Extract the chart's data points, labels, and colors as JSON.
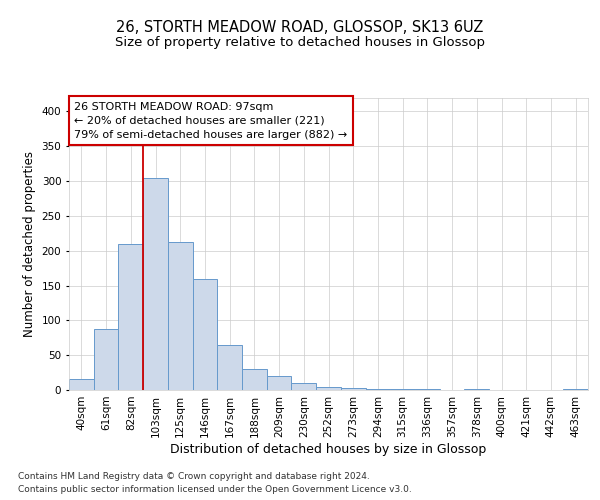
{
  "title1": "26, STORTH MEADOW ROAD, GLOSSOP, SK13 6UZ",
  "title2": "Size of property relative to detached houses in Glossop",
  "xlabel": "Distribution of detached houses by size in Glossop",
  "ylabel": "Number of detached properties",
  "categories": [
    "40sqm",
    "61sqm",
    "82sqm",
    "103sqm",
    "125sqm",
    "146sqm",
    "167sqm",
    "188sqm",
    "209sqm",
    "230sqm",
    "252sqm",
    "273sqm",
    "294sqm",
    "315sqm",
    "336sqm",
    "357sqm",
    "378sqm",
    "400sqm",
    "421sqm",
    "442sqm",
    "463sqm"
  ],
  "values": [
    16,
    88,
    210,
    305,
    212,
    160,
    64,
    30,
    20,
    10,
    5,
    3,
    2,
    1,
    1,
    0,
    1,
    0,
    0,
    0,
    2
  ],
  "bar_color": "#cdd9ea",
  "bar_edge_color": "#6699cc",
  "grid_color": "#cccccc",
  "vline_color": "#cc0000",
  "annotation_text": "26 STORTH MEADOW ROAD: 97sqm\n← 20% of detached houses are smaller (221)\n79% of semi-detached houses are larger (882) →",
  "annotation_box_color": "#ffffff",
  "annotation_box_edge": "#cc0000",
  "footer1": "Contains HM Land Registry data © Crown copyright and database right 2024.",
  "footer2": "Contains public sector information licensed under the Open Government Licence v3.0.",
  "ylim": [
    0,
    420
  ],
  "yticks": [
    0,
    50,
    100,
    150,
    200,
    250,
    300,
    350,
    400
  ],
  "background_color": "#ffffff",
  "title1_fontsize": 10.5,
  "title2_fontsize": 9.5,
  "xlabel_fontsize": 9,
  "ylabel_fontsize": 8.5,
  "tick_fontsize": 7.5,
  "annotation_fontsize": 8,
  "footer_fontsize": 6.5
}
